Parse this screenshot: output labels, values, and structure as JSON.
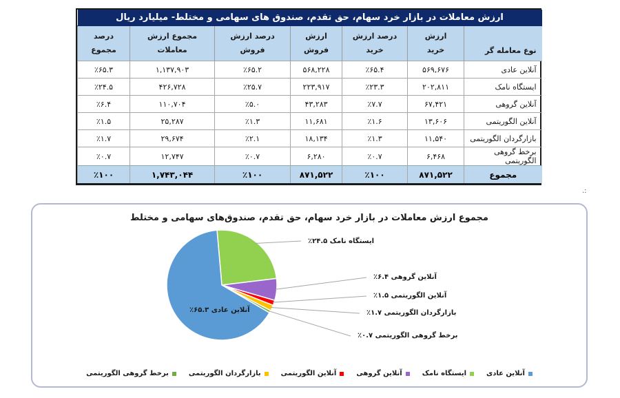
{
  "table": {
    "title": "ارزش معاملات در بازار خرد سهام، حق تقدم، صندوق های سهامی و مختلط- میلیارد ریال",
    "headers": [
      {
        "line1": "",
        "line2": "نوع معامله گر"
      },
      {
        "line1": "ارزش",
        "line2": "خرید"
      },
      {
        "line1": "درصد ارزش",
        "line2": "خرید"
      },
      {
        "line1": "ارزش",
        "line2": "فروش"
      },
      {
        "line1": "درصد ارزش",
        "line2": "فروش"
      },
      {
        "line1": "مجموع ارزش",
        "line2": "معاملات"
      },
      {
        "line1": "درصد",
        "line2": "مجموع"
      }
    ],
    "rows": [
      [
        "آنلاین عادی",
        "۵۶۹,۶۷۶",
        "٪۶۵.۴",
        "۵۶۸,۲۲۸",
        "٪۶۵.۲",
        "۱,۱۳۷,۹۰۳",
        "٪۶۵.۳"
      ],
      [
        "ایستگاه نامک",
        "۲۰۲,۸۱۱",
        "٪۲۳.۳",
        "۲۲۳,۹۱۷",
        "٪۲۵.۷",
        "۴۲۶,۷۲۸",
        "٪۲۴.۵"
      ],
      [
        "آنلاین گروهی",
        "۶۷,۴۲۱",
        "٪۷.۷",
        "۴۳,۲۸۳",
        "٪۵.۰",
        "۱۱۰,۷۰۴",
        "٪۶.۴"
      ],
      [
        "آنلاین الگوریتمی",
        "۱۳,۶۰۶",
        "٪۱.۶",
        "۱۱,۶۸۱",
        "٪۱.۳",
        "۲۵,۲۸۷",
        "٪۱.۵"
      ],
      [
        "بازارگردان الگوریتمی",
        "۱۱,۵۴۰",
        "٪۱.۳",
        "۱۸,۱۳۴",
        "٪۲.۱",
        "۲۹,۶۷۴",
        "٪۱.۷"
      ],
      [
        "برخط گروهی الگوریتمی",
        "۶,۴۶۸",
        "٪۰.۷",
        "۶,۲۸۰",
        "٪۰.۷",
        "۱۲,۷۴۷",
        "٪۰.۷"
      ]
    ],
    "total": [
      "مجموع",
      "۸۷۱,۵۲۲",
      "٪۱۰۰",
      "۸۷۱,۵۲۲",
      "٪۱۰۰",
      "۱,۷۴۳,۰۴۴",
      "٪۱۰۰"
    ]
  },
  "stray_mark": ".:",
  "chart_data": {
    "type": "pie",
    "title": "مجموع ارزش معاملات در بازار خرد سهام، حق تقدم، صندوق‌های سهامی و مختلط",
    "categories": [
      "آنلاین عادی",
      "ایستگاه نامک",
      "آنلاین گروهی",
      "آنلاین الگوریتمی",
      "بازارگردان الگوریتمی",
      "برخط گروهی الگوریتمی"
    ],
    "values": [
      65.3,
      24.5,
      6.4,
      1.5,
      1.7,
      0.7
    ],
    "colors": [
      "#5b9bd5",
      "#92d050",
      "#9966cc",
      "#ff0000",
      "#ffc000",
      "#70ad47"
    ],
    "labels": [
      "آنلاین عادی ۶۵.۳٪",
      "ایستگاه نامک ۲۴.۵٪",
      "آنلاین گروهی ۶.۴٪",
      "آنلاین الگوریتمی ۱.۵٪",
      "بازارگردان الگوریتمی ۱.۷٪",
      "برخط گروهی الگوریتمی ۰.۷٪"
    ],
    "legend": [
      "آنلاین عادی",
      "ایستگاه نامک",
      "آنلاین گروهی",
      "آنلاین الگوریتمی",
      "بازارگردان الگوریتمی",
      "برخط گروهی الگوریتمی"
    ],
    "legend_position": "bottom"
  }
}
